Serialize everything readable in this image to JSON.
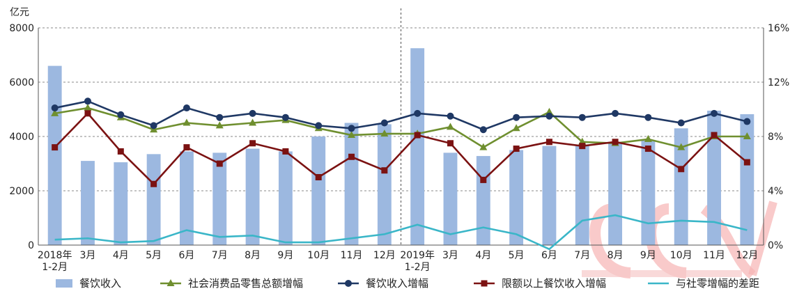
{
  "chart_data": {
    "type": "bar",
    "y_left_unit": "亿元",
    "y_left_ticks": [
      "0",
      "2000",
      "4000",
      "6000",
      "8000"
    ],
    "y_right_ticks": [
      "0%",
      "4%",
      "8%",
      "12%",
      "16%"
    ],
    "ylim_left": [
      0,
      8000
    ],
    "ylim_right": [
      0,
      16
    ],
    "categories": [
      [
        "2018年",
        "1-2月"
      ],
      [
        "3月"
      ],
      [
        "4月"
      ],
      [
        "5月"
      ],
      [
        "6月"
      ],
      [
        "7月"
      ],
      [
        "8月"
      ],
      [
        "9月"
      ],
      [
        "10月"
      ],
      [
        "11月"
      ],
      [
        "12月"
      ],
      [
        "2019年",
        "1-2月"
      ],
      [
        "3月"
      ],
      [
        "4月"
      ],
      [
        "5月"
      ],
      [
        "6月"
      ],
      [
        "7月"
      ],
      [
        "8月"
      ],
      [
        "9月"
      ],
      [
        "10月"
      ],
      [
        "11月"
      ],
      [
        "12月"
      ]
    ],
    "bar_series": {
      "name": "餐饮收入",
      "color": "#9cb8e0",
      "values": [
        6600,
        3100,
        3050,
        3350,
        3450,
        3400,
        3550,
        3450,
        4000,
        4500,
        4450,
        7250,
        3400,
        3280,
        3500,
        3650,
        3650,
        3800,
        3850,
        4300,
        4950,
        4820
      ]
    },
    "line_series": [
      {
        "name": "社会消费品零售总额增幅",
        "color": "#6f8f2f",
        "marker": "triangle",
        "values": [
          9.7,
          10.1,
          9.4,
          8.5,
          9.0,
          8.8,
          9.0,
          9.2,
          8.6,
          8.1,
          8.2,
          8.2,
          8.7,
          7.2,
          8.6,
          9.8,
          7.6,
          7.5,
          7.8,
          7.2,
          8.0,
          8.0
        ]
      },
      {
        "name": "餐饮收入增幅",
        "color": "#1f3864",
        "marker": "circle",
        "values": [
          10.1,
          10.6,
          9.6,
          8.8,
          10.1,
          9.4,
          9.7,
          9.4,
          8.8,
          8.6,
          9.0,
          9.7,
          9.5,
          8.5,
          9.4,
          9.5,
          9.4,
          9.7,
          9.4,
          9.0,
          9.7,
          9.1
        ]
      },
      {
        "name": "限额以上餐饮收入增幅",
        "color": "#7b1212",
        "marker": "square",
        "values": [
          7.2,
          9.7,
          6.9,
          4.5,
          7.2,
          6.0,
          7.5,
          6.9,
          5.0,
          6.5,
          5.5,
          8.1,
          7.5,
          4.8,
          7.1,
          7.6,
          7.3,
          7.6,
          7.1,
          5.6,
          8.1,
          6.1
        ]
      },
      {
        "name": "与社零增幅的差距",
        "color": "#3ab6c8",
        "marker": "none",
        "values": [
          0.4,
          0.5,
          0.2,
          0.3,
          1.1,
          0.6,
          0.7,
          0.2,
          0.2,
          0.5,
          0.8,
          1.5,
          0.8,
          1.3,
          0.8,
          -0.3,
          1.8,
          2.2,
          1.6,
          1.8,
          1.7,
          1.1
        ]
      }
    ],
    "divider_after_index": 10,
    "grid": true,
    "legend_position": "bottom"
  }
}
